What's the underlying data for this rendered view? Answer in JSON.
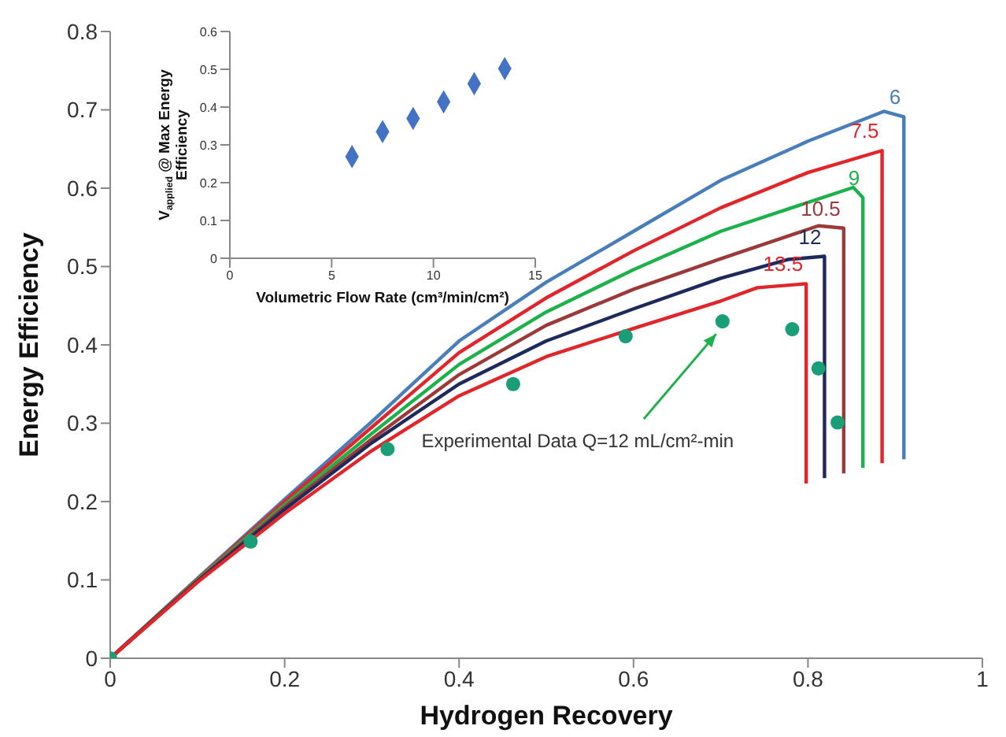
{
  "chart_data": [
    {
      "type": "line",
      "xlabel": "Hydrogen Recovery",
      "ylabel": "Energy Efficiency",
      "xlim": [
        0,
        1
      ],
      "xticks": [
        0,
        0.2,
        0.4,
        0.6,
        0.8,
        1
      ],
      "ylim": [
        0,
        0.8
      ],
      "yticks": [
        0,
        0.1,
        0.2,
        0.3,
        0.4,
        0.5,
        0.6,
        0.7,
        0.8
      ],
      "grid": false,
      "legend": false,
      "line_style": "solid",
      "marker": "none",
      "series": [
        {
          "name": "6",
          "color": "#4a7ebb",
          "x": [
            0,
            0.1,
            0.2,
            0.3,
            0.4,
            0.5,
            0.6,
            0.7,
            0.8,
            0.887,
            0.91,
            0.91
          ],
          "values": [
            0,
            0.102,
            0.203,
            0.302,
            0.405,
            0.48,
            0.545,
            0.61,
            0.66,
            0.698,
            0.691,
            0.254
          ]
        },
        {
          "name": "7.5",
          "color": "#e0262a",
          "x": [
            0,
            0.1,
            0.2,
            0.3,
            0.4,
            0.5,
            0.6,
            0.7,
            0.8,
            0.885,
            0.885
          ],
          "values": [
            0,
            0.101,
            0.2,
            0.295,
            0.39,
            0.46,
            0.52,
            0.575,
            0.62,
            0.648,
            0.249
          ]
        },
        {
          "name": "9",
          "color": "#1db14b",
          "x": [
            0,
            0.1,
            0.2,
            0.3,
            0.4,
            0.5,
            0.6,
            0.7,
            0.852,
            0.863,
            0.863
          ],
          "values": [
            0,
            0.1,
            0.196,
            0.287,
            0.375,
            0.442,
            0.496,
            0.545,
            0.601,
            0.588,
            0.243
          ]
        },
        {
          "name": "10.5",
          "color": "#9c3a3a",
          "x": [
            0,
            0.1,
            0.2,
            0.3,
            0.4,
            0.5,
            0.6,
            0.7,
            0.812,
            0.841,
            0.841
          ],
          "values": [
            0,
            0.099,
            0.193,
            0.28,
            0.362,
            0.425,
            0.471,
            0.51,
            0.552,
            0.549,
            0.236
          ]
        },
        {
          "name": "12",
          "color": "#1f2a5c",
          "x": [
            0,
            0.1,
            0.2,
            0.3,
            0.4,
            0.5,
            0.6,
            0.7,
            0.777,
            0.819,
            0.819
          ],
          "values": [
            0,
            0.098,
            0.19,
            0.275,
            0.35,
            0.405,
            0.446,
            0.485,
            0.509,
            0.513,
            0.23
          ]
        },
        {
          "name": "13.5",
          "color": "#e0262a",
          "x": [
            0,
            0.1,
            0.2,
            0.3,
            0.4,
            0.5,
            0.6,
            0.7,
            0.742,
            0.798,
            0.798
          ],
          "values": [
            0,
            0.097,
            0.185,
            0.265,
            0.335,
            0.385,
            0.421,
            0.456,
            0.473,
            0.478,
            0.223
          ]
        },
        {
          "type": "scatter",
          "marker": "circle",
          "color": "#1a9e77",
          "x": [
            0,
            0.161,
            0.318,
            0.462,
            0.591,
            0.702,
            0.782,
            0.812,
            0.834
          ],
          "values": [
            0,
            0.149,
            0.267,
            0.35,
            0.411,
            0.43,
            0.42,
            0.37,
            0.301
          ]
        }
      ],
      "annotations": [
        {
          "text": "Experimental Data Q=12 mL/cm²-min",
          "x": 0.702,
          "y": 0.43
        }
      ]
    },
    {
      "type": "scatter",
      "xlabel": "Volumetric Flow Rate (cm³/min/cm²)",
      "ylabel": "V$_{applied}$ @ Max Energy Efficiency",
      "xlim": [
        0,
        15
      ],
      "xticks": [
        0,
        5,
        10,
        15
      ],
      "ylim": [
        0,
        0.6
      ],
      "yticks": [
        0,
        0.1,
        0.2,
        0.3,
        0.4,
        0.5,
        0.6
      ],
      "grid": false,
      "legend": false,
      "marker": "diamond",
      "series": [
        {
          "color": "#4472c4",
          "x": [
            6,
            7.5,
            9,
            10.5,
            12,
            13.5
          ],
          "values": [
            0.269,
            0.335,
            0.37,
            0.414,
            0.462,
            0.502
          ]
        }
      ]
    }
  ]
}
